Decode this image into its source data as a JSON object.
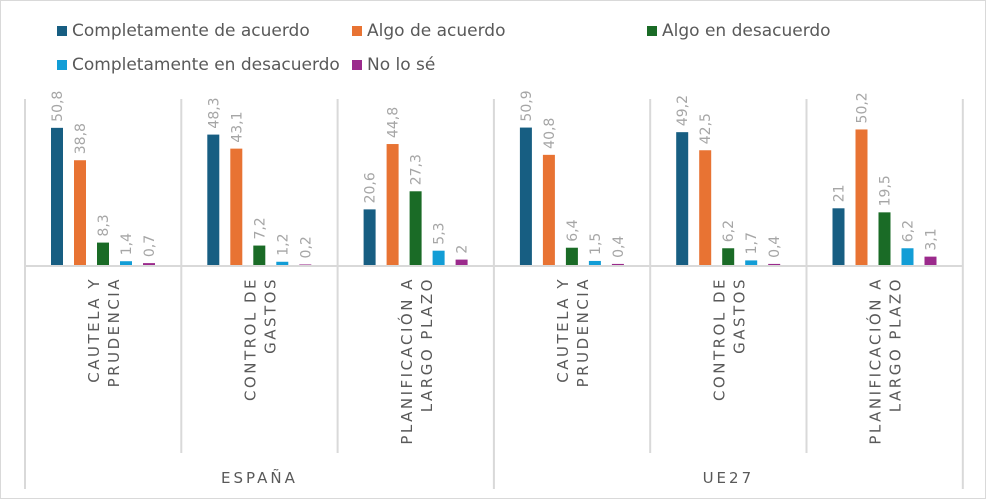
{
  "chart_data": {
    "type": "bar",
    "title": "",
    "groups": [
      {
        "name": "ESPAÑA",
        "categories": [
          [
            "CAUTELA Y",
            "PRUDENCIA"
          ],
          [
            "CONTROL DE",
            "GASTOS"
          ],
          [
            "PLANIFICACIÓN A",
            "LARGO PLAZO"
          ]
        ]
      },
      {
        "name": "UE27",
        "categories": [
          [
            "CAUTELA Y",
            "PRUDENCIA"
          ],
          [
            "CONTROL DE",
            "GASTOS"
          ],
          [
            "PLANIFICACIÓN A",
            "LARGO PLAZO"
          ]
        ]
      }
    ],
    "series": [
      {
        "name": "Completamente de acuerdo",
        "color": "#175e82",
        "values": [
          50.8,
          48.3,
          20.6,
          50.9,
          49.2,
          21
        ]
      },
      {
        "name": "Algo de acuerdo",
        "color": "#e87333",
        "values": [
          38.8,
          43.1,
          44.8,
          40.8,
          42.5,
          50.2
        ]
      },
      {
        "name": "Algo en desacuerdo",
        "color": "#1a6b26",
        "values": [
          8.3,
          7.2,
          27.3,
          6.4,
          6.2,
          19.5
        ]
      },
      {
        "name": "Completamente en desacuerdo",
        "color": "#129dd6",
        "values": [
          1.4,
          1.2,
          5.3,
          1.5,
          1.7,
          6.2
        ]
      },
      {
        "name": "No lo sé",
        "color": "#9b2a8c",
        "values": [
          0.7,
          0.2,
          2,
          0.4,
          0.4,
          3.1
        ]
      }
    ],
    "legend": "top",
    "grid": false,
    "ylim": [
      0,
      55
    ],
    "decimal_separator": ","
  }
}
